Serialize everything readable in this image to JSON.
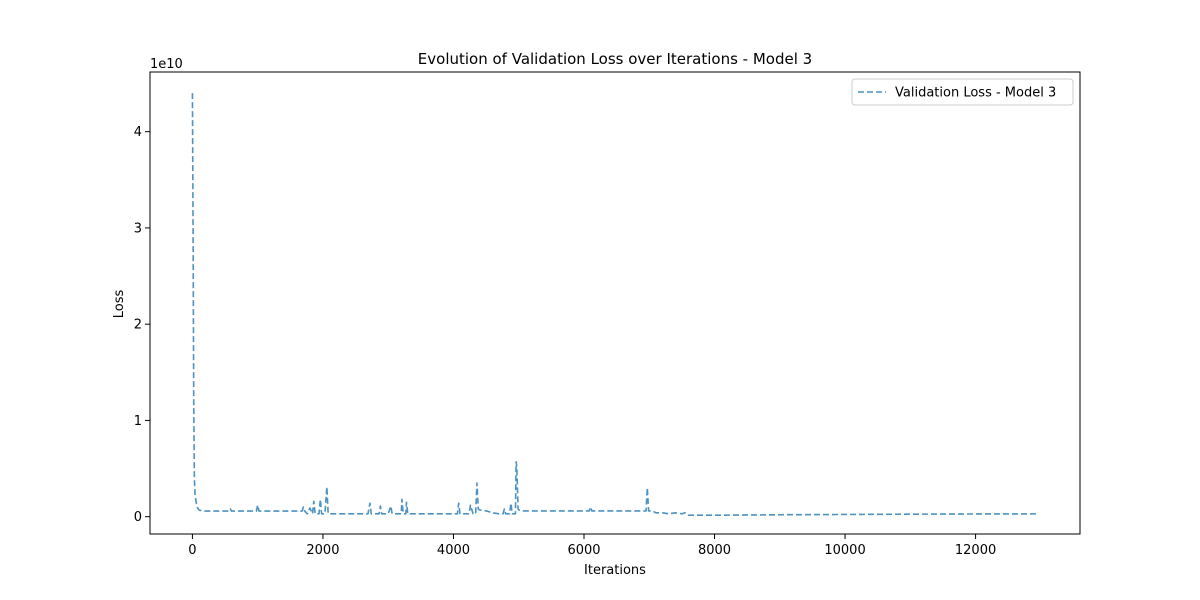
{
  "chart_data": {
    "type": "line",
    "title": "Evolution of Validation Loss over Iterations - Model 3",
    "xlabel": "Iterations",
    "ylabel": "Loss",
    "y_offset_label": "1e10",
    "y_scale_factor": 10000000000,
    "xlim": [
      -650,
      13600
    ],
    "ylim": [
      -1800000000,
      46200000000
    ],
    "x_ticks": [
      0,
      2000,
      4000,
      6000,
      8000,
      10000,
      12000
    ],
    "y_ticks": [
      0,
      1,
      2,
      3,
      4
    ],
    "grid": false,
    "legend_position": "upper right",
    "series": [
      {
        "name": "Validation Loss - Model 3",
        "color": "#1f77b4",
        "line_style": "dashed",
        "x": [
          0,
          10,
          20,
          30,
          40,
          60,
          80,
          100,
          150,
          200,
          400,
          560,
          580,
          600,
          980,
          1000,
          1020,
          1680,
          1700,
          1720,
          1760,
          1800,
          1840,
          1860,
          1880,
          1940,
          1960,
          1980,
          2030,
          2060,
          2080,
          2200,
          2400,
          2600,
          2690,
          2720,
          2740,
          2800,
          2860,
          2880,
          2900,
          3000,
          3040,
          3060,
          3100,
          3200,
          3210,
          3230,
          3270,
          3280,
          3300,
          3500,
          3700,
          3900,
          4000,
          4060,
          4080,
          4100,
          4200,
          4240,
          4260,
          4300,
          4340,
          4360,
          4380,
          4400,
          4500,
          4600,
          4700,
          4760,
          4780,
          4800,
          4860,
          4880,
          4900,
          4950,
          4960,
          4970,
          4990,
          5000,
          5050,
          5200,
          5500,
          5800,
          6000,
          6080,
          6100,
          6120,
          6400,
          6700,
          6900,
          6950,
          6970,
          6990,
          7050,
          7100,
          7200,
          7300,
          7400,
          7500,
          7550,
          7600,
          7700,
          8000,
          9000,
          10000,
          11000,
          12000,
          12950
        ],
        "y": [
          44000000000,
          30000000000,
          12000000000,
          4000000000,
          2200000000,
          1400000000,
          900000000,
          700000000,
          600000000,
          580000000,
          580000000,
          580000000,
          800000000,
          580000000,
          580000000,
          1200000000,
          580000000,
          580000000,
          1000000000,
          580000000,
          300000000,
          900000000,
          300000000,
          1600000000,
          300000000,
          300000000,
          1800000000,
          300000000,
          300000000,
          3100000000,
          300000000,
          300000000,
          300000000,
          300000000,
          300000000,
          1400000000,
          300000000,
          300000000,
          300000000,
          1100000000,
          300000000,
          300000000,
          1100000000,
          300000000,
          300000000,
          300000000,
          1800000000,
          300000000,
          300000000,
          1500000000,
          300000000,
          300000000,
          300000000,
          300000000,
          300000000,
          300000000,
          1400000000,
          300000000,
          300000000,
          300000000,
          1200000000,
          300000000,
          300000000,
          3500000000,
          800000000,
          700000000,
          600000000,
          400000000,
          300000000,
          300000000,
          800000000,
          300000000,
          300000000,
          1400000000,
          300000000,
          300000000,
          5700000000,
          5200000000,
          800000000,
          700000000,
          600000000,
          600000000,
          600000000,
          600000000,
          600000000,
          600000000,
          1000000000,
          600000000,
          600000000,
          600000000,
          600000000,
          600000000,
          3000000000,
          600000000,
          600000000,
          400000000,
          400000000,
          300000000,
          400000000,
          300000000,
          400000000,
          150000000,
          150000000,
          150000000,
          200000000,
          230000000,
          260000000,
          280000000,
          290000000
        ]
      }
    ]
  }
}
